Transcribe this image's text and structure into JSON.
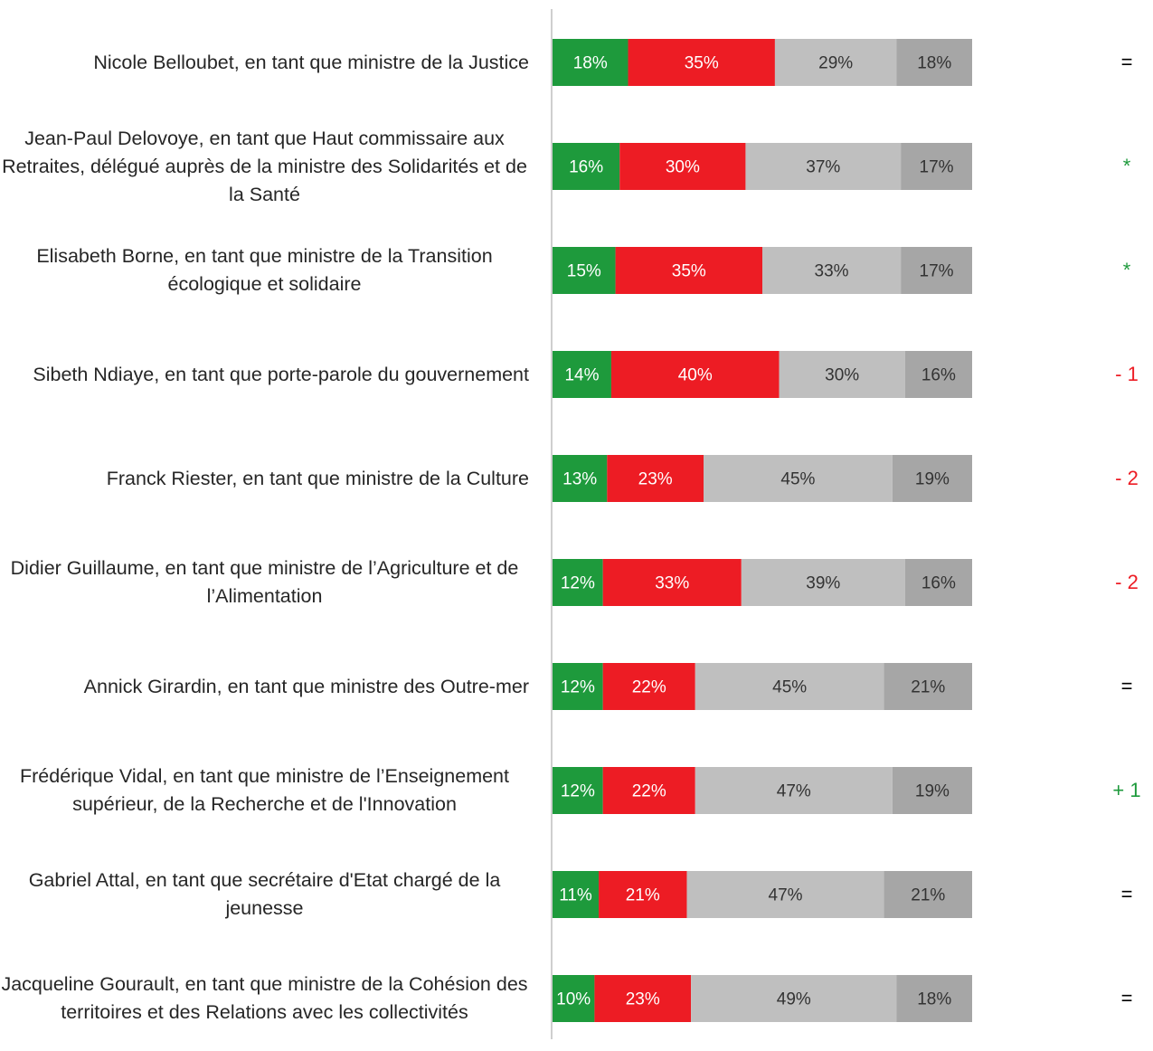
{
  "chart_data": {
    "type": "stacked_bar_horizontal",
    "categories": [
      "Nicole Belloubet, en tant que ministre de la Justice",
      "Jean-Paul Delovoye, en tant que Haut commissaire aux Retraites, délégué auprès de la ministre des Solidarités et de la Santé",
      "Elisabeth Borne, en tant que ministre de la Transition écologique et solidaire",
      "Sibeth Ndiaye, en tant que porte-parole du gouvernement",
      "Franck Riester, en tant que ministre de la Culture",
      "Didier Guillaume, en tant que ministre de l’Agriculture et de l’Alimentation",
      "Annick Girardin, en tant que ministre des Outre-mer",
      "Frédérique Vidal, en tant que ministre de l’Enseignement supérieur, de la Recherche et de l'Innovation",
      "Gabriel Attal, en tant que secrétaire d'Etat chargé de la jeunesse",
      "Jacqueline Gourault, en tant que ministre de la Cohésion des territoires et des Relations avec les collectivités"
    ],
    "xlim": [
      0,
      100
    ],
    "series": [
      {
        "color": "#1e9a3c",
        "text_color": "#ffffff",
        "values": [
          18,
          16,
          15,
          14,
          13,
          12,
          12,
          12,
          11,
          10
        ],
        "value_labels": [
          "18%",
          "16%",
          "15%",
          "14%",
          "13%",
          "12%",
          "12%",
          "12%",
          "11%",
          "10%"
        ]
      },
      {
        "color": "#ed1c24",
        "text_color": "#ffffff",
        "values": [
          35,
          30,
          35,
          40,
          23,
          33,
          22,
          22,
          21,
          23
        ],
        "value_labels": [
          "35%",
          "30%",
          "35%",
          "40%",
          "23%",
          "33%",
          "22%",
          "22%",
          "21%",
          "23%"
        ]
      },
      {
        "color": "#bfbfbf",
        "text_color": "#333333",
        "values": [
          29,
          37,
          33,
          30,
          45,
          39,
          45,
          47,
          47,
          49
        ],
        "value_labels": [
          "29%",
          "37%",
          "33%",
          "30%",
          "45%",
          "39%",
          "45%",
          "47%",
          "47%",
          "49%"
        ]
      },
      {
        "color": "#a6a6a6",
        "text_color": "#333333",
        "values": [
          18,
          17,
          17,
          16,
          19,
          16,
          21,
          19,
          21,
          18
        ],
        "value_labels": [
          "18%",
          "17%",
          "17%",
          "16%",
          "19%",
          "16%",
          "21%",
          "19%",
          "21%",
          "18%"
        ]
      }
    ],
    "changes": [
      "=",
      "*",
      "*",
      "- 1",
      "- 2",
      "- 2",
      "=",
      "+ 1",
      "=",
      "="
    ],
    "change_colors": [
      "#000000",
      "#1e9a3c",
      "#1e9a3c",
      "#ed1c24",
      "#ed1c24",
      "#ed1c24",
      "#000000",
      "#1e9a3c",
      "#000000",
      "#000000"
    ]
  }
}
